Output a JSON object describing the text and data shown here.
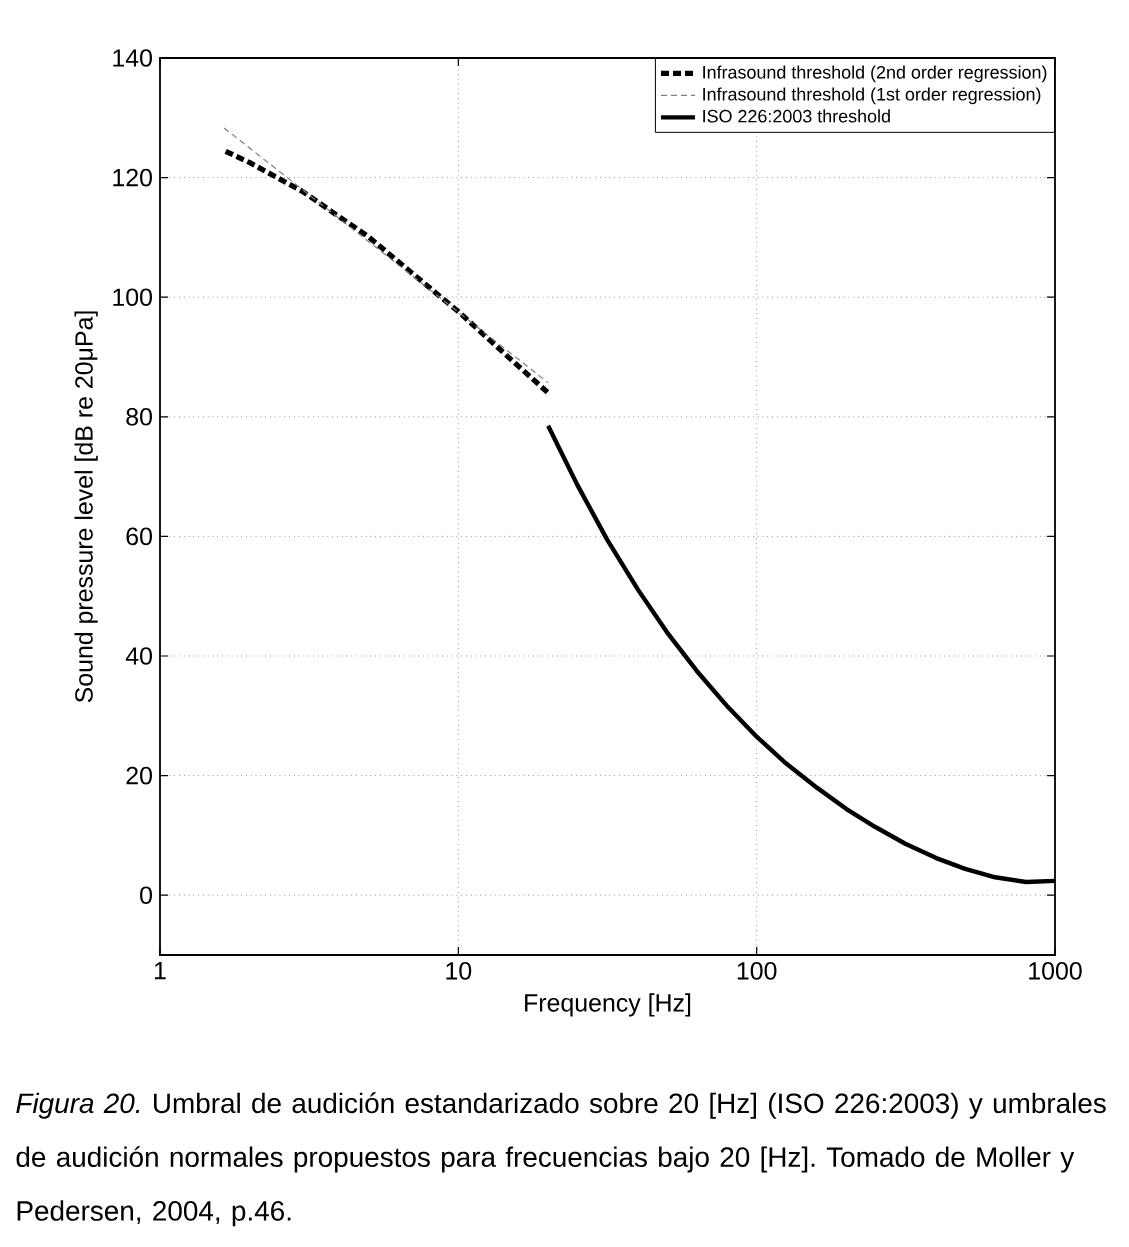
{
  "chart_data": {
    "type": "line",
    "xlabel": "Frequency [Hz]",
    "ylabel": "Sound pressure level [dB re 20μPa]",
    "log": "x",
    "xlim": [
      1,
      1000
    ],
    "xticks": [
      1,
      10,
      100,
      1000
    ],
    "ylim": [
      -10,
      140
    ],
    "yticks": [
      0,
      20,
      40,
      60,
      80,
      100,
      120,
      140
    ],
    "grid": true,
    "legend": "top right",
    "series": [
      {
        "name": "Infrasound threshold (2nd order regression)",
        "color": "#000000",
        "line_style": "dashed",
        "x": [
          1.66,
          2,
          3,
          5,
          8,
          10,
          15,
          20
        ],
        "values": [
          124.4,
          122.5,
          117.7,
          110.1,
          101.6,
          97.6,
          89.6,
          84.0
        ]
      },
      {
        "name": "Infrasound threshold (1st order regression)",
        "color": "#808080",
        "line_style": "dashed",
        "x": [
          1.64,
          20
        ],
        "values": [
          128.3,
          85.7
        ]
      },
      {
        "name": "ISO 226:2003 threshold",
        "color": "#000000",
        "line_style": "solid",
        "x": [
          20,
          25,
          31.5,
          40,
          50,
          63,
          80,
          100,
          125,
          160,
          200,
          250,
          315,
          400,
          500,
          630,
          800,
          1000
        ],
        "values": [
          78.5,
          68.7,
          59.5,
          51.1,
          44.0,
          37.5,
          31.5,
          26.5,
          22.1,
          17.9,
          14.4,
          11.4,
          8.6,
          6.2,
          4.4,
          3.0,
          2.2,
          2.4
        ]
      }
    ],
    "annotations": [
      "*Figura 20.* Umbral de audición estandarizado sobre 20 [Hz] (ISO 226:2003) y umbrales de audición normales propuestos para frecuencias bajo 20 [Hz]. Tomado de Moller y Pedersen, 2004, p.46."
    ]
  }
}
